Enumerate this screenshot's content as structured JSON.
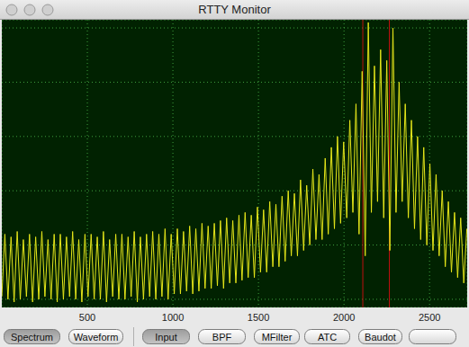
{
  "window": {
    "title": "RTTY Monitor"
  },
  "chart_data": {
    "type": "line",
    "x": [
      0,
      18,
      36,
      54,
      72,
      90,
      108,
      126,
      144,
      162,
      180,
      198,
      216,
      234,
      252,
      270,
      288,
      306,
      324,
      342,
      360,
      378,
      396,
      414,
      432,
      450,
      468,
      486,
      504,
      522,
      540,
      558,
      576,
      594,
      612,
      630,
      648,
      666,
      684,
      702,
      720,
      738,
      756,
      774,
      792,
      810,
      828,
      846,
      864,
      882,
      900,
      918,
      936,
      954,
      972,
      990,
      1008,
      1026,
      1044,
      1062,
      1080,
      1098,
      1116,
      1134,
      1152,
      1170,
      1188,
      1206,
      1224,
      1242,
      1260,
      1278,
      1296,
      1314,
      1332,
      1350,
      1368,
      1386,
      1404,
      1422,
      1440,
      1458,
      1476,
      1494,
      1512,
      1530,
      1548,
      1566,
      1584,
      1602,
      1620,
      1638,
      1656,
      1674,
      1692,
      1710,
      1728,
      1746,
      1764,
      1782,
      1800,
      1818,
      1836,
      1854,
      1872,
      1890,
      1908,
      1926,
      1944,
      1962,
      1980,
      1998,
      2016,
      2034,
      2052,
      2070,
      2088,
      2106,
      2124,
      2142,
      2160,
      2178,
      2196,
      2214,
      2232,
      2250,
      2268,
      2286,
      2304,
      2322,
      2340,
      2358,
      2376,
      2394,
      2412,
      2430,
      2448,
      2466,
      2484,
      2502,
      2520,
      2538,
      2556,
      2574,
      2592,
      2610,
      2628,
      2646,
      2664,
      2682,
      2700,
      2718
    ],
    "values": [
      0.05,
      1.2,
      0.0,
      1.15,
      -0.05,
      1.25,
      0.0,
      1.1,
      0.05,
      1.2,
      -0.05,
      1.15,
      0.0,
      1.25,
      0.05,
      1.1,
      0.0,
      1.2,
      -0.05,
      1.2,
      0.0,
      1.15,
      0.05,
      1.25,
      0.0,
      1.1,
      -0.05,
      1.2,
      0.05,
      1.2,
      0.0,
      1.15,
      0.0,
      1.25,
      -0.05,
      1.1,
      0.05,
      1.2,
      0.0,
      1.2,
      0.0,
      1.15,
      0.05,
      1.25,
      -0.05,
      1.15,
      0.0,
      1.2,
      0.05,
      1.25,
      0.0,
      1.2,
      0.05,
      1.3,
      0.0,
      1.2,
      0.1,
      1.3,
      0.1,
      1.25,
      0.15,
      1.35,
      0.1,
      1.3,
      0.15,
      1.4,
      0.2,
      1.35,
      0.2,
      1.4,
      0.25,
      1.45,
      0.2,
      1.5,
      0.3,
      1.45,
      0.3,
      1.55,
      0.35,
      1.6,
      0.4,
      1.55,
      0.4,
      1.7,
      0.5,
      1.65,
      0.5,
      1.8,
      0.6,
      1.75,
      0.6,
      1.9,
      0.7,
      2.0,
      0.8,
      1.95,
      0.8,
      2.2,
      0.9,
      2.1,
      1.0,
      2.4,
      1.1,
      2.3,
      1.1,
      2.6,
      1.2,
      2.8,
      1.3,
      3.0,
      1.4,
      2.9,
      1.5,
      3.3,
      1.6,
      3.6,
      1.2,
      4.2,
      0.8,
      5.1,
      1.6,
      4.3,
      1.8,
      4.6,
      1.5,
      4.4,
      0.9,
      5.0,
      1.6,
      4.0,
      1.8,
      3.6,
      1.5,
      3.3,
      1.3,
      3.0,
      1.1,
      2.8,
      1.0,
      2.5,
      0.9,
      2.3,
      0.8,
      2.0,
      0.6,
      1.8,
      0.5,
      1.6,
      0.4,
      1.5,
      0.3,
      1.3
    ],
    "color": "#e6e61a",
    "xlim": [
      0,
      2720
    ],
    "ylim": [
      -0.15,
      5.15
    ],
    "xticks": [
      500,
      1000,
      1500,
      2000,
      2500
    ],
    "yticks": [
      0,
      1,
      2,
      3,
      4,
      5
    ],
    "grid": true,
    "tick_labels": "x",
    "reference_lines": [
      2110,
      2265
    ]
  },
  "toolbar": {
    "views": [
      {
        "label": "Spectrum",
        "selected": true
      },
      {
        "label": "Waveform",
        "selected": false
      }
    ],
    "stages": [
      {
        "label": "Input",
        "selected": true
      },
      {
        "label": "BPF",
        "selected": false
      },
      {
        "label": "MFilter",
        "selected": false
      },
      {
        "label": "ATC",
        "selected": false
      },
      {
        "label": "Baudot",
        "selected": false
      }
    ]
  }
}
